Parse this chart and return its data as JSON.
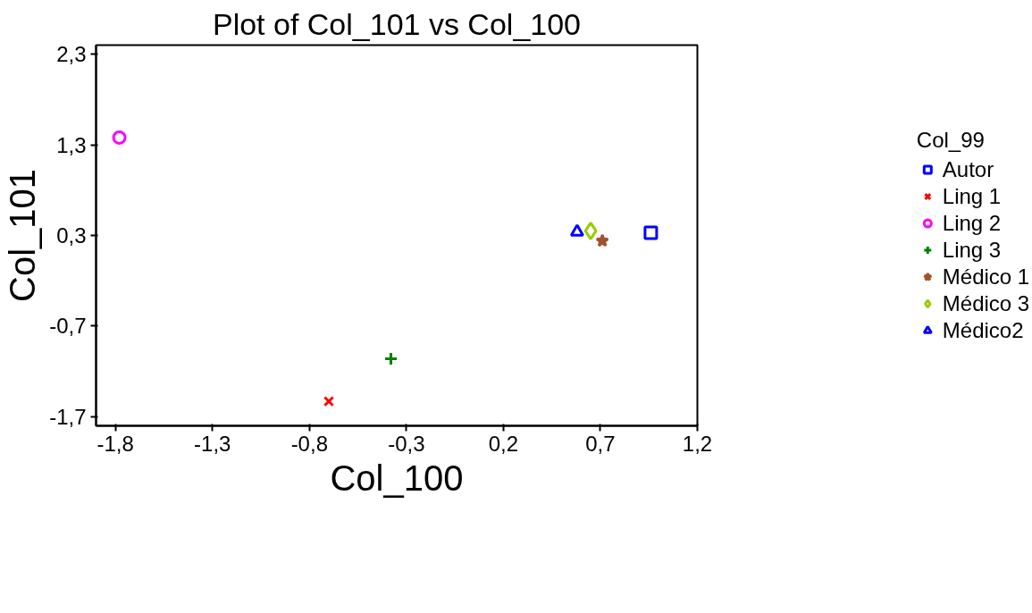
{
  "chart_data": {
    "type": "scatter",
    "title": "Plot of Col_101 vs Col_100",
    "xlabel": "Col_100",
    "ylabel": "Col_101",
    "legend_title": "Col_99",
    "legend": "right",
    "grid": false,
    "xlim": [
      -1.9,
      1.2
    ],
    "ylim": [
      -1.8,
      2.4
    ],
    "xticks": [
      {
        "value": -1.8,
        "label": "-1,8"
      },
      {
        "value": -1.3,
        "label": "-1,3"
      },
      {
        "value": -0.8,
        "label": "-0,8"
      },
      {
        "value": -0.3,
        "label": "-0,3"
      },
      {
        "value": 0.2,
        "label": "0,2"
      },
      {
        "value": 0.7,
        "label": "0,7"
      },
      {
        "value": 1.2,
        "label": "1,2"
      }
    ],
    "yticks": [
      {
        "value": -1.7,
        "label": "-1,7"
      },
      {
        "value": -0.7,
        "label": "-0,7"
      },
      {
        "value": 0.3,
        "label": "0,3"
      },
      {
        "value": 1.3,
        "label": "1,3"
      },
      {
        "value": 2.3,
        "label": "2,3"
      }
    ],
    "series": [
      {
        "name": "Autor",
        "color": "#0000ff",
        "marker": "square",
        "x": [
          0.96
        ],
        "values": [
          0.33
        ]
      },
      {
        "name": "Ling 1",
        "color": "#ff0000",
        "marker": "x",
        "x": [
          -0.7
        ],
        "values": [
          -1.53
        ]
      },
      {
        "name": "Ling 2",
        "color": "#ff00ff",
        "marker": "circle",
        "x": [
          -1.78
        ],
        "values": [
          1.38
        ]
      },
      {
        "name": "Ling 3",
        "color": "#008000",
        "marker": "cross",
        "x": [
          -0.38
        ],
        "values": [
          -1.06
        ]
      },
      {
        "name": "Médico 1",
        "color": "#a0522d",
        "marker": "star",
        "x": [
          0.71
        ],
        "values": [
          0.24
        ]
      },
      {
        "name": "Médico 3",
        "color": "#99cc00",
        "marker": "diamond",
        "x": [
          0.65
        ],
        "values": [
          0.35
        ]
      },
      {
        "name": "Médico2",
        "color": "#0000ff",
        "marker": "triangle",
        "x": [
          0.58
        ],
        "values": [
          0.34
        ]
      }
    ]
  }
}
